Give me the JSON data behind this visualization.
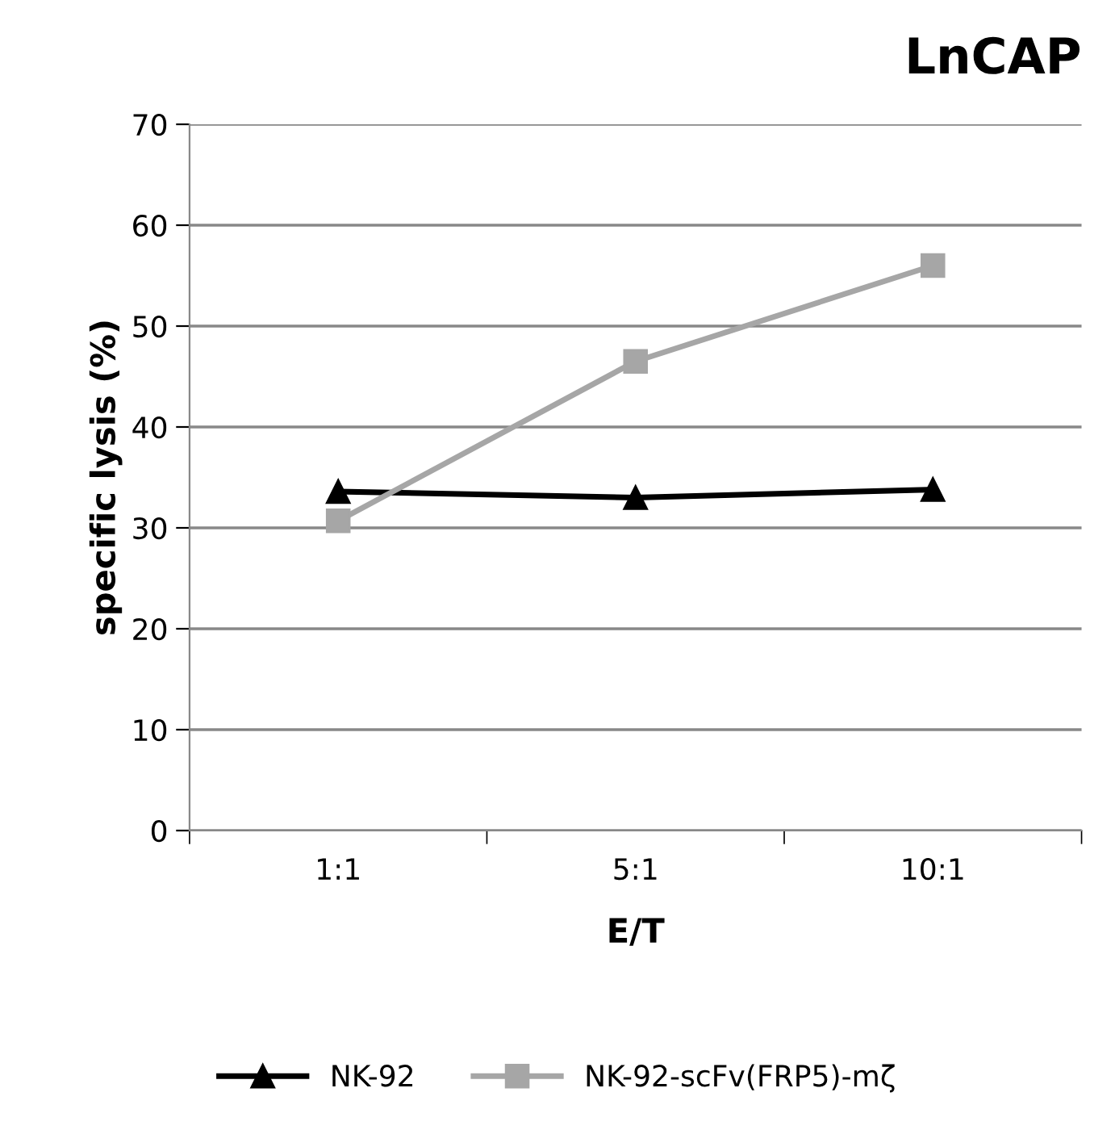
{
  "chart_data": {
    "type": "line",
    "title": "LnCAP",
    "xlabel": "E/T",
    "ylabel": "specific lysis (%)",
    "categories": [
      "1:1",
      "5:1",
      "10:1"
    ],
    "series": [
      {
        "name": "NK-92",
        "color": "#000000",
        "marker": "triangle",
        "values": [
          33.6,
          33.0,
          33.8
        ]
      },
      {
        "name": "NK-92-scFv(FRP5)-mζ",
        "color": "#a6a6a6",
        "marker": "square",
        "values": [
          30.7,
          46.5,
          56.0
        ]
      }
    ],
    "ylim": [
      0,
      70
    ],
    "yticks": [
      0,
      10,
      20,
      30,
      40,
      50,
      60,
      70
    ],
    "grid": "y",
    "legend": "bottom",
    "line_style": "solid"
  }
}
